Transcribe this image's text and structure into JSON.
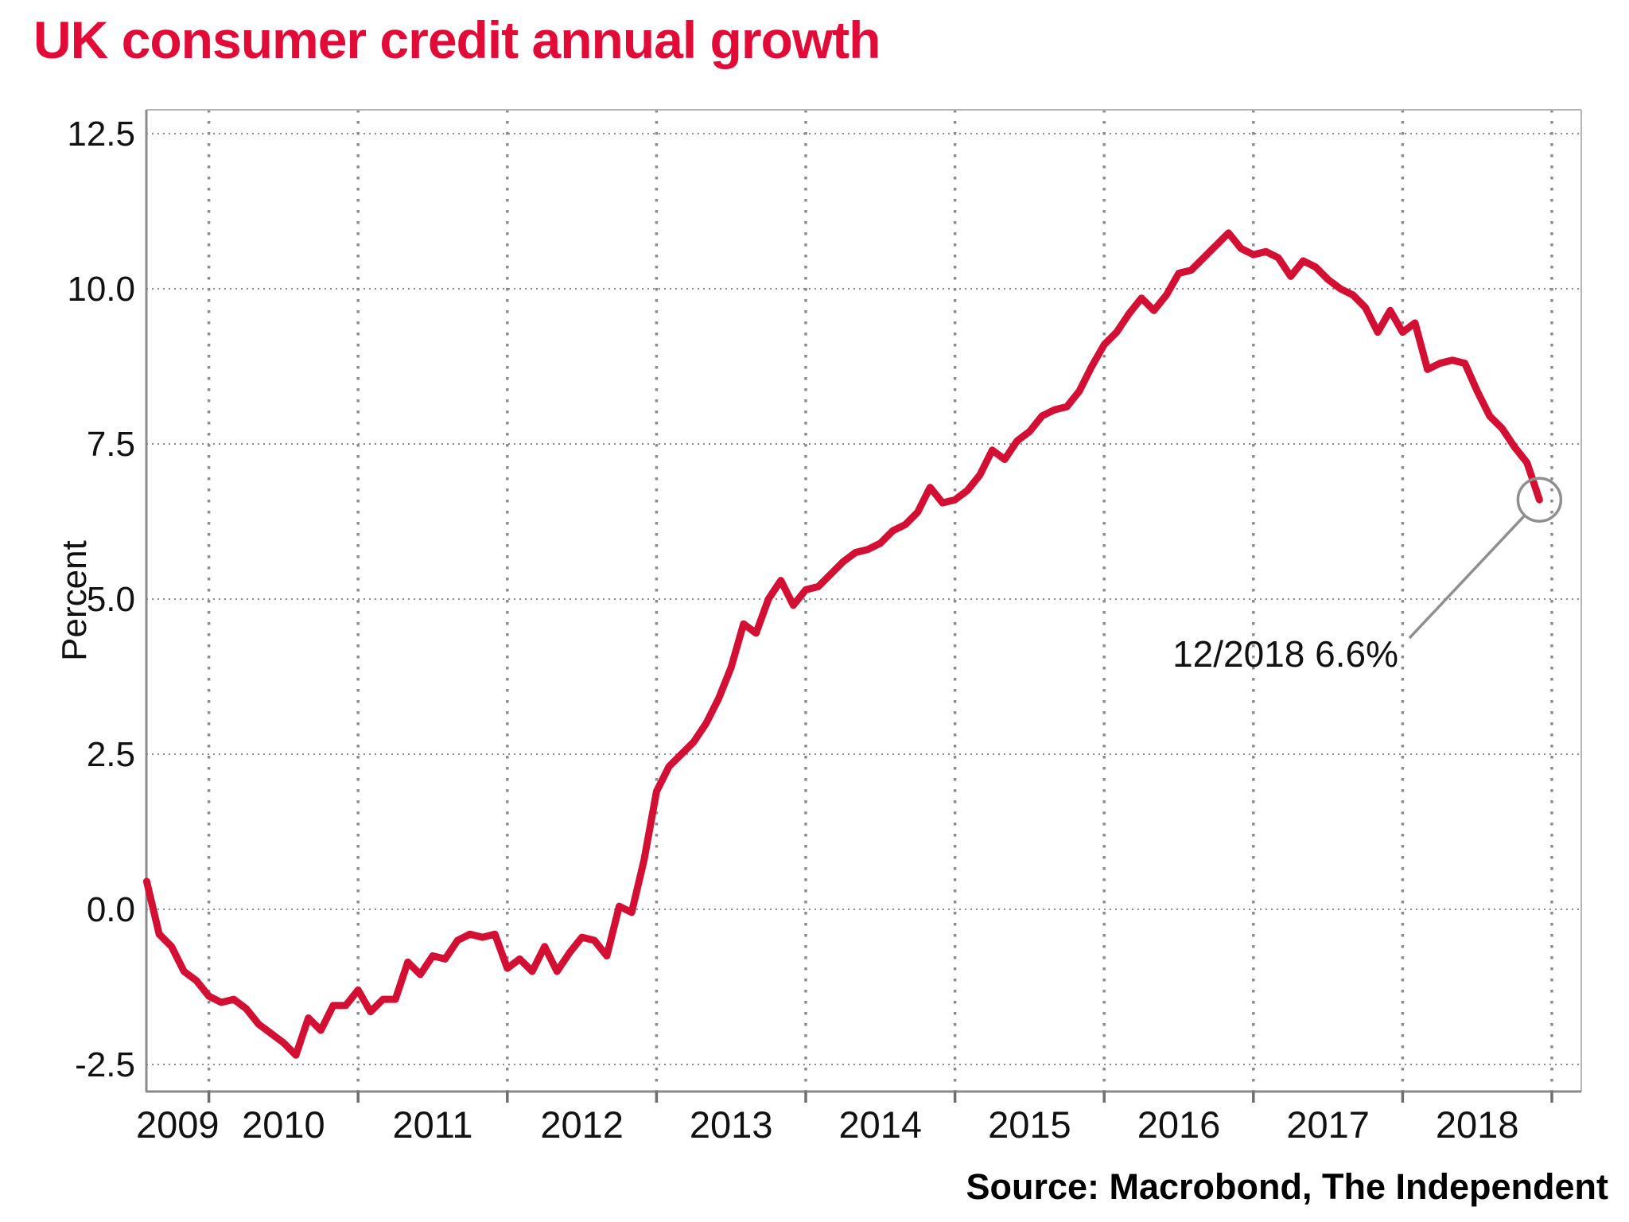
{
  "title": "UK consumer credit annual growth",
  "source": "Source: Macrobond, The Independent",
  "colors": {
    "title": "#e20b38",
    "line": "#d40f34",
    "grid": "#8c8c8c",
    "axis": "#8a8a8a",
    "frame": "#b5b5b5",
    "tick": "#6e6e6e",
    "text": "#111111",
    "annotation_gray": "#8f8f8f",
    "background": "#ffffff"
  },
  "chart_data": {
    "type": "line",
    "title": "UK consumer credit annual growth",
    "ylabel": "Percent",
    "xlabel": "",
    "grid": "dotted",
    "legend": "none",
    "frequency": "monthly",
    "start": "2009-08",
    "end": "2018-12",
    "ylim": [
      -2.94,
      12.9
    ],
    "xlim_years": [
      2009.58,
      2019.23
    ],
    "yticks": [
      12.5,
      10.0,
      7.5,
      5.0,
      2.5,
      0.0,
      -2.5
    ],
    "ytick_labels": [
      "12.5",
      "10.0",
      "7.5",
      "5.0",
      "2.5",
      "0.0",
      "-2.5"
    ],
    "year_gridlines": [
      2010,
      2011,
      2012,
      2013,
      2014,
      2015,
      2016,
      2017,
      2018,
      2019
    ],
    "year_labels": [
      "2009",
      "2010",
      "2011",
      "2012",
      "2013",
      "2014",
      "2015",
      "2016",
      "2017",
      "2018"
    ],
    "annotation": {
      "text": "12/2018 6.6%",
      "point": "2018-12",
      "value": 6.6
    },
    "series": [
      {
        "name": "UK consumer credit annual growth (%)",
        "start_month_index_from_jan2009": 7,
        "values": [
          0.45,
          -0.4,
          -0.6,
          -1.0,
          -1.15,
          -1.4,
          -1.5,
          -1.45,
          -1.6,
          -1.85,
          -2.0,
          -2.15,
          -2.35,
          -1.75,
          -1.95,
          -1.55,
          -1.55,
          -1.3,
          -1.65,
          -1.45,
          -1.45,
          -0.85,
          -1.05,
          -0.75,
          -0.8,
          -0.5,
          -0.4,
          -0.45,
          -0.4,
          -0.95,
          -0.8,
          -1.0,
          -0.6,
          -1.0,
          -0.7,
          -0.45,
          -0.5,
          -0.75,
          0.05,
          -0.05,
          0.8,
          1.9,
          2.3,
          2.5,
          2.7,
          3.0,
          3.4,
          3.9,
          4.6,
          4.45,
          5.0,
          5.3,
          4.9,
          5.15,
          5.2,
          5.4,
          5.6,
          5.75,
          5.8,
          5.9,
          6.1,
          6.2,
          6.4,
          6.8,
          6.55,
          6.6,
          6.75,
          7.0,
          7.4,
          7.25,
          7.55,
          7.7,
          7.95,
          8.05,
          8.1,
          8.35,
          8.75,
          9.1,
          9.3,
          9.6,
          9.85,
          9.65,
          9.9,
          10.25,
          10.3,
          10.5,
          10.7,
          10.9,
          10.65,
          10.55,
          10.6,
          10.5,
          10.2,
          10.45,
          10.35,
          10.15,
          10.0,
          9.9,
          9.7,
          9.3,
          9.65,
          9.3,
          9.45,
          8.7,
          8.8,
          8.85,
          8.8,
          8.35,
          7.95,
          7.75,
          7.45,
          7.2,
          6.6
        ]
      }
    ]
  }
}
